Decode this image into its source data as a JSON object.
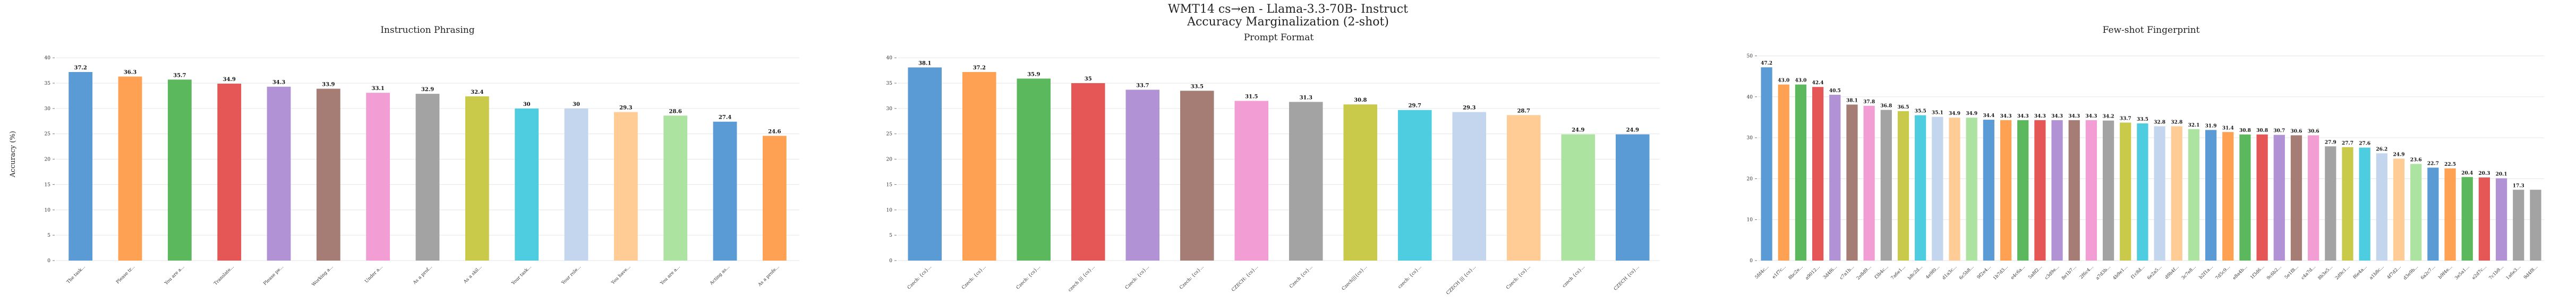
{
  "figure": {
    "title_line1": "WMT14 cs→en - Llama-3.3-70B- Instruct",
    "title_line2": "Accuracy Marginalization (2-shot)"
  },
  "chart_data": [
    {
      "type": "bar",
      "title": "Instruction Phrasing",
      "ylabel": "Accuracy (%)",
      "xlabel": "",
      "ylim": [
        0,
        42
      ],
      "yticks": [
        0,
        5,
        10,
        15,
        20,
        25,
        30,
        35,
        40
      ],
      "grid": true,
      "categories": [
        "The task...",
        "Please tr...",
        "You are a...",
        "Translate...",
        "Please pe...",
        "Working a...",
        "Under a...",
        "As a prof...",
        "As a skil...",
        "Your task...",
        "Your role...",
        "You have...",
        "You are a...",
        "Acting as...",
        "As a profe..."
      ],
      "values": [
        37.2,
        36.3,
        35.7,
        34.9,
        34.3,
        33.9,
        33.1,
        32.9,
        32.4,
        30.0,
        30.0,
        29.3,
        28.6,
        27.4,
        24.6
      ],
      "colors": [
        "#5b9bd5",
        "#ffa152",
        "#5cb85c",
        "#e45756",
        "#b192d4",
        "#a57d74",
        "#f29dd4",
        "#a3a3a3",
        "#c9c94a",
        "#4dcddf",
        "#c3d6ee",
        "#ffcc95",
        "#ace3a0",
        "#5b9bd5",
        "#ffa152"
      ]
    },
    {
      "type": "bar",
      "title": "Prompt Format",
      "ylabel": "",
      "xlabel": "",
      "ylim": [
        0,
        42
      ],
      "yticks": [
        0,
        5,
        10,
        15,
        20,
        25,
        30,
        35,
        40
      ],
      "grid": true,
      "categories": [
        "Czech: {cs}...",
        "Czech: {cs}...",
        "Czech: {cs}...",
        "czech ||| {cs}...",
        "Czech: {cs}...",
        "Czech: {cs}...",
        "CZECH: {cs}...",
        "Czech {cs}...",
        "Czech|||{cs}...",
        "czech: {cs}...",
        "CZECH ||| {cs}...",
        "Czech: {cs}...",
        "czech {cs}...",
        "CZECH {cs}..."
      ],
      "values": [
        38.1,
        37.2,
        35.9,
        35.0,
        33.7,
        33.5,
        31.5,
        31.3,
        30.8,
        29.7,
        29.3,
        28.7,
        24.9,
        24.9
      ],
      "colors": [
        "#5b9bd5",
        "#ffa152",
        "#5cb85c",
        "#e45756",
        "#b192d4",
        "#a57d74",
        "#f29dd4",
        "#a3a3a3",
        "#c9c94a",
        "#4dcddf",
        "#c3d6ee",
        "#ffcc95",
        "#ace3a0",
        "#5b9bd5"
      ]
    },
    {
      "type": "bar",
      "title": "Few-shot Fingerprint",
      "ylabel": "",
      "xlabel": "",
      "ylim": [
        0,
        52
      ],
      "yticks": [
        0,
        10,
        20,
        30,
        40,
        50
      ],
      "grid": true,
      "categories": [
        "5fd4c...",
        "e1f7c...",
        "8bc2e...",
        "a9012...",
        "3d4f6...",
        "c7a1b...",
        "2e8d9...",
        "f3b4c...",
        "7a6e1...",
        "b8c2d...",
        "4e9f0...",
        "d1a3c...",
        "6c5b8...",
        "9f2e4...",
        "1b7d3...",
        "e4c6a...",
        "5a8f2...",
        "c3d9e...",
        "8e1b7...",
        "2f6c4...",
        "a7d3b...",
        "4b9e1...",
        "f1c8d...",
        "6e2a5...",
        "d9b4f...",
        "3c7e8...",
        "b2f1a...",
        "7d5c9...",
        "e8a4b...",
        "1f3d6...",
        "9c6b2...",
        "5e1f8...",
        "c4a7d...",
        "8b3e5...",
        "2d9c1...",
        "f6e4a...",
        "a1b8c...",
        "4f7d2...",
        "d3e9b...",
        "6a2c7...",
        "b9f4e...",
        "3e5a1...",
        "e2d7c...",
        "7c1b9...",
        "1a6e3...",
        "9d4f8..."
      ],
      "values": [
        47.2,
        43.0,
        43.0,
        42.4,
        40.5,
        38.1,
        37.8,
        36.8,
        36.5,
        35.5,
        35.1,
        34.9,
        34.9,
        34.4,
        34.3,
        34.3,
        34.3,
        34.3,
        34.3,
        34.3,
        34.2,
        33.7,
        33.5,
        32.8,
        32.8,
        32.1,
        31.9,
        31.4,
        30.8,
        30.8,
        30.7,
        30.6,
        30.6,
        27.9,
        27.7,
        27.6,
        26.2,
        24.9,
        23.6,
        22.7,
        22.5,
        20.4,
        20.3,
        20.1,
        17.3,
        17.3
      ],
      "value_labels": [
        "47.2",
        "43.0",
        "43.0",
        "42.4",
        "40.5",
        "38.1",
        "37.8",
        "36.8",
        "36.5",
        "35.5",
        "35.1",
        "34.9",
        "34.9",
        "34.4",
        "34.3",
        "34.3",
        "34.3",
        "34.3",
        "34.3",
        "34.3",
        "34.2",
        "33.7",
        "33.5",
        "32.8",
        "32.8",
        "32.1",
        "31.9",
        "31.4",
        "30.8",
        "30.8",
        "30.7",
        "30.6",
        "30.6",
        "27.9",
        "27.7",
        "27.6",
        "26.2",
        "24.9",
        "23.6",
        "22.7",
        "22.5",
        "20.4",
        "20.3",
        "20.1",
        "17.3",
        ""
      ],
      "colors": [
        "#5b9bd5",
        "#ffa152",
        "#5cb85c",
        "#e45756",
        "#b192d4",
        "#a57d74",
        "#f29dd4",
        "#a3a3a3",
        "#c9c94a",
        "#4dcddf",
        "#c3d6ee",
        "#ffcc95",
        "#ace3a0",
        "#5b9bd5",
        "#ffa152",
        "#5cb85c",
        "#e45756",
        "#b192d4",
        "#a57d74",
        "#f29dd4",
        "#a3a3a3",
        "#c9c94a",
        "#4dcddf",
        "#c3d6ee",
        "#ffcc95",
        "#ace3a0",
        "#5b9bd5",
        "#ffa152",
        "#5cb85c",
        "#e45756",
        "#b192d4",
        "#a57d74",
        "#f29dd4",
        "#a3a3a3",
        "#c9c94a",
        "#4dcddf",
        "#c3d6ee",
        "#ffcc95",
        "#ace3a0",
        "#5b9bd5",
        "#ffa152",
        "#5cb85c",
        "#e45756",
        "#b192d4",
        "#a3a3a3",
        "#a3a3a3"
      ]
    }
  ]
}
